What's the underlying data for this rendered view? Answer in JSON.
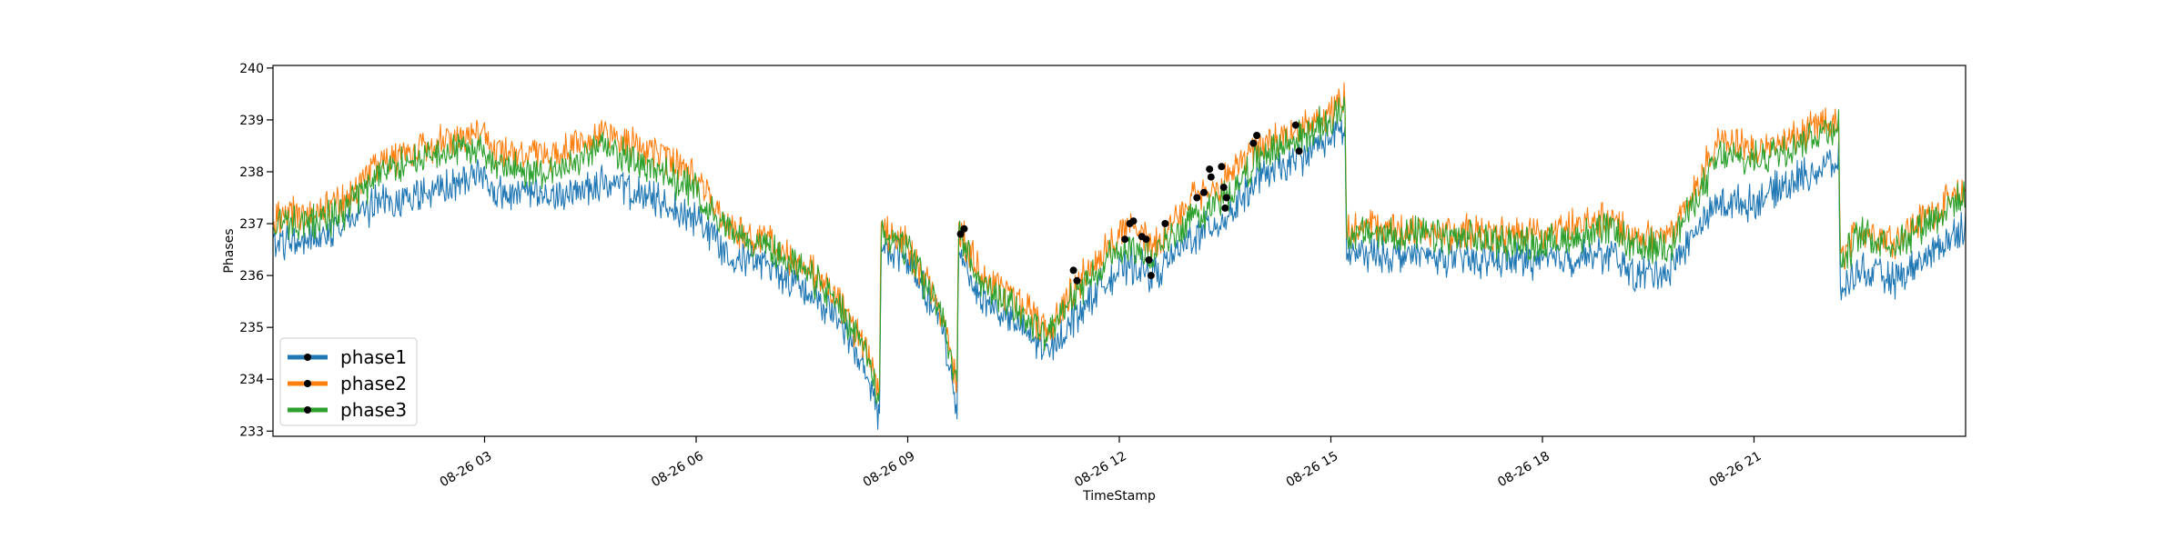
{
  "chart_data": {
    "type": "line",
    "title": "",
    "xlabel": "TimeStamp",
    "ylabel": "Phases",
    "x_range": [
      "08-26 00:00",
      "08-26 24:00"
    ],
    "ylim": [
      232.9,
      240.05
    ],
    "grid": false,
    "legend_position": "lower-left",
    "x_ticks": [
      "08-26 03",
      "08-26 06",
      "08-26 09",
      "08-26 12",
      "08-26 15",
      "08-26 18",
      "08-26 21"
    ],
    "x_tick_hours": [
      3,
      6,
      9,
      12,
      15,
      18,
      21
    ],
    "y_ticks": [
      233,
      234,
      235,
      236,
      237,
      238,
      239,
      240
    ],
    "x_unit": "hours",
    "series": [
      {
        "name": "phase1",
        "color": "#1f77b4",
        "points": [
          [
            0.0,
            236.6
          ],
          [
            0.5,
            236.7
          ],
          [
            1.0,
            237.0
          ],
          [
            1.5,
            237.4
          ],
          [
            2.0,
            237.5
          ],
          [
            2.5,
            237.7
          ],
          [
            3.0,
            238.0
          ],
          [
            3.1,
            237.6
          ],
          [
            4.0,
            237.5
          ],
          [
            4.7,
            237.8
          ],
          [
            5.5,
            237.4
          ],
          [
            6.0,
            237.1
          ],
          [
            6.5,
            236.4
          ],
          [
            7.0,
            236.2
          ],
          [
            7.5,
            235.8
          ],
          [
            8.0,
            235.2
          ],
          [
            8.5,
            233.8
          ],
          [
            8.6,
            233.2
          ],
          [
            8.62,
            236.6
          ],
          [
            9.0,
            236.3
          ],
          [
            9.5,
            235.0
          ],
          [
            9.7,
            233.3
          ],
          [
            9.72,
            236.6
          ],
          [
            10.0,
            235.6
          ],
          [
            10.5,
            235.1
          ],
          [
            11.0,
            234.5
          ],
          [
            11.3,
            235.1
          ],
          [
            11.8,
            235.9
          ],
          [
            12.2,
            236.2
          ],
          [
            12.5,
            236.0
          ],
          [
            13.0,
            236.7
          ],
          [
            13.5,
            237.1
          ],
          [
            14.0,
            237.9
          ],
          [
            14.5,
            238.2
          ],
          [
            15.0,
            238.7
          ],
          [
            15.2,
            238.8
          ],
          [
            15.22,
            236.4
          ],
          [
            16.0,
            236.4
          ],
          [
            17.0,
            236.3
          ],
          [
            18.0,
            236.3
          ],
          [
            19.0,
            236.4
          ],
          [
            19.3,
            236.0
          ],
          [
            19.8,
            236.1
          ],
          [
            20.2,
            236.9
          ],
          [
            20.5,
            237.4
          ],
          [
            21.0,
            237.4
          ],
          [
            21.5,
            237.8
          ],
          [
            22.0,
            238.1
          ],
          [
            22.2,
            238.2
          ],
          [
            22.22,
            235.7
          ],
          [
            22.5,
            236.1
          ],
          [
            23.0,
            235.9
          ],
          [
            23.5,
            236.4
          ],
          [
            24.0,
            237.0
          ]
        ]
      },
      {
        "name": "phase2",
        "color": "#ff7f0e",
        "points": [
          [
            0.0,
            237.1
          ],
          [
            0.5,
            237.2
          ],
          [
            1.0,
            237.4
          ],
          [
            1.5,
            238.2
          ],
          [
            2.0,
            238.4
          ],
          [
            2.5,
            238.6
          ],
          [
            3.0,
            238.8
          ],
          [
            3.1,
            238.4
          ],
          [
            4.0,
            238.3
          ],
          [
            4.7,
            238.8
          ],
          [
            5.5,
            238.3
          ],
          [
            6.0,
            237.9
          ],
          [
            6.5,
            236.9
          ],
          [
            7.0,
            236.7
          ],
          [
            7.5,
            236.2
          ],
          [
            8.0,
            235.6
          ],
          [
            8.5,
            234.3
          ],
          [
            8.6,
            233.8
          ],
          [
            8.62,
            236.9
          ],
          [
            9.0,
            236.6
          ],
          [
            9.5,
            235.3
          ],
          [
            9.7,
            233.9
          ],
          [
            9.72,
            236.9
          ],
          [
            10.0,
            236.1
          ],
          [
            10.5,
            235.6
          ],
          [
            11.0,
            234.9
          ],
          [
            11.3,
            235.6
          ],
          [
            11.8,
            236.6
          ],
          [
            12.2,
            236.9
          ],
          [
            12.5,
            236.6
          ],
          [
            13.0,
            237.4
          ],
          [
            13.5,
            237.8
          ],
          [
            14.0,
            238.5
          ],
          [
            14.5,
            238.8
          ],
          [
            15.0,
            239.1
          ],
          [
            15.2,
            239.4
          ],
          [
            15.22,
            236.9
          ],
          [
            16.0,
            236.9
          ],
          [
            17.0,
            236.8
          ],
          [
            18.0,
            236.8
          ],
          [
            19.0,
            237.1
          ],
          [
            19.3,
            236.7
          ],
          [
            19.8,
            236.8
          ],
          [
            20.2,
            237.8
          ],
          [
            20.5,
            238.6
          ],
          [
            21.0,
            238.4
          ],
          [
            21.5,
            238.6
          ],
          [
            22.0,
            238.9
          ],
          [
            22.2,
            238.9
          ],
          [
            22.22,
            236.3
          ],
          [
            22.5,
            236.9
          ],
          [
            23.0,
            236.7
          ],
          [
            23.5,
            237.2
          ],
          [
            24.0,
            237.6
          ]
        ]
      },
      {
        "name": "phase3",
        "color": "#2ca02c",
        "points": [
          [
            0.0,
            237.0
          ],
          [
            0.5,
            237.0
          ],
          [
            1.0,
            237.2
          ],
          [
            1.5,
            238.0
          ],
          [
            2.0,
            238.2
          ],
          [
            2.5,
            238.4
          ],
          [
            3.0,
            238.5
          ],
          [
            3.1,
            238.1
          ],
          [
            4.0,
            238.0
          ],
          [
            4.7,
            238.5
          ],
          [
            5.5,
            238.0
          ],
          [
            6.0,
            237.6
          ],
          [
            6.5,
            236.8
          ],
          [
            7.0,
            236.6
          ],
          [
            7.5,
            236.1
          ],
          [
            8.0,
            235.5
          ],
          [
            8.5,
            234.2
          ],
          [
            8.6,
            233.6
          ],
          [
            8.62,
            236.8
          ],
          [
            9.0,
            236.5
          ],
          [
            9.5,
            235.2
          ],
          [
            9.7,
            233.8
          ],
          [
            9.72,
            236.8
          ],
          [
            10.0,
            235.9
          ],
          [
            10.5,
            235.4
          ],
          [
            11.0,
            234.8
          ],
          [
            11.3,
            235.5
          ],
          [
            11.8,
            236.3
          ],
          [
            12.2,
            236.6
          ],
          [
            12.5,
            236.4
          ],
          [
            13.0,
            237.1
          ],
          [
            13.5,
            237.5
          ],
          [
            14.0,
            238.3
          ],
          [
            14.5,
            238.6
          ],
          [
            15.0,
            239.0
          ],
          [
            15.2,
            239.3
          ],
          [
            15.22,
            236.8
          ],
          [
            16.0,
            236.8
          ],
          [
            17.0,
            236.7
          ],
          [
            18.0,
            236.6
          ],
          [
            19.0,
            236.9
          ],
          [
            19.3,
            236.5
          ],
          [
            19.8,
            236.6
          ],
          [
            20.2,
            237.5
          ],
          [
            20.5,
            238.3
          ],
          [
            21.0,
            238.2
          ],
          [
            21.5,
            238.5
          ],
          [
            22.0,
            238.8
          ],
          [
            22.2,
            238.9
          ],
          [
            22.22,
            236.2
          ],
          [
            22.5,
            236.8
          ],
          [
            23.0,
            236.6
          ],
          [
            23.5,
            237.1
          ],
          [
            24.0,
            237.5
          ]
        ]
      }
    ],
    "anomalies": [
      [
        9.75,
        236.8
      ],
      [
        9.8,
        236.9
      ],
      [
        11.35,
        236.1
      ],
      [
        11.4,
        235.9
      ],
      [
        12.08,
        236.7
      ],
      [
        12.15,
        237.0
      ],
      [
        12.2,
        237.05
      ],
      [
        12.32,
        236.75
      ],
      [
        12.38,
        236.7
      ],
      [
        12.42,
        236.3
      ],
      [
        12.45,
        236.0
      ],
      [
        12.65,
        237.0
      ],
      [
        13.1,
        237.5
      ],
      [
        13.2,
        237.6
      ],
      [
        13.28,
        238.05
      ],
      [
        13.3,
        237.9
      ],
      [
        13.45,
        238.1
      ],
      [
        13.48,
        237.7
      ],
      [
        13.5,
        237.3
      ],
      [
        13.52,
        237.5
      ],
      [
        13.9,
        238.55
      ],
      [
        13.95,
        238.7
      ],
      [
        14.5,
        238.9
      ],
      [
        14.55,
        238.4
      ]
    ]
  }
}
